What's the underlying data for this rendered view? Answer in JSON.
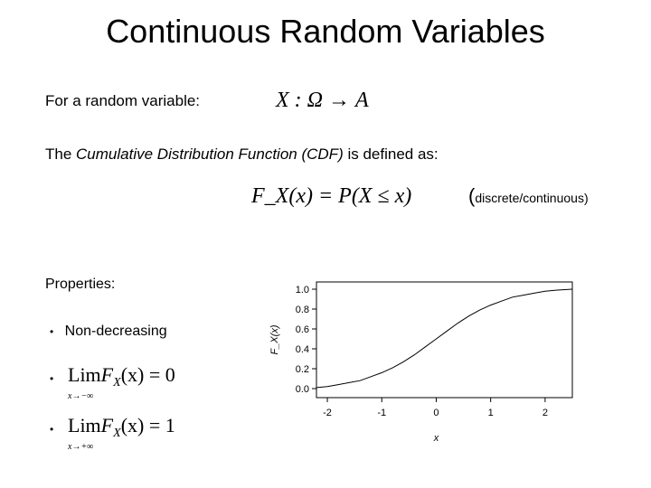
{
  "title": "Continuous Random Variables",
  "random_variable": {
    "label": "For a random variable:",
    "formula": "X : Ω → A"
  },
  "cdf": {
    "text_prefix": "The ",
    "text_italic": "Cumulative Distribution Function (CDF)",
    "text_suffix": " is defined as:",
    "formula": "F_X(x) = P(X ≤ x)",
    "note_paren": "(",
    "note_text": "discrete/continuous)"
  },
  "properties": {
    "heading": "Properties:",
    "bullet_char": "•",
    "non_decreasing": "Non-decreasing",
    "lim1": {
      "lim": "Lim",
      "F": "F",
      "X": "X",
      "rest": "(x) = 0",
      "sub": "x→−∞"
    },
    "lim2": {
      "lim": "Lim",
      "F": "F",
      "X": "X",
      "rest": "(x) = 1",
      "sub": "x→+∞"
    }
  },
  "chart_data": {
    "type": "line",
    "title": "",
    "xlabel": "x",
    "ylabel": "F_X(x)",
    "xlim": [
      -2.2,
      2.5
    ],
    "ylim": [
      0,
      1.0
    ],
    "xticks": [
      "-2",
      "-1",
      "0",
      "1",
      "2"
    ],
    "yticks": [
      "0.0",
      "0.2",
      "0.4",
      "0.6",
      "0.8",
      "1.0"
    ],
    "series": [
      {
        "x": [
          -2.2,
          -2.0,
          -1.8,
          -1.6,
          -1.4,
          -1.2,
          -1.0,
          -0.8,
          -0.6,
          -0.4,
          -0.2,
          0.0,
          0.2,
          0.4,
          0.6,
          0.8,
          1.0,
          1.2,
          1.4,
          1.6,
          1.8,
          2.0,
          2.2,
          2.5
        ],
        "y": [
          0.01,
          0.02,
          0.04,
          0.06,
          0.08,
          0.12,
          0.16,
          0.21,
          0.27,
          0.34,
          0.42,
          0.5,
          0.58,
          0.66,
          0.73,
          0.79,
          0.84,
          0.88,
          0.92,
          0.94,
          0.96,
          0.98,
          0.99,
          1.0
        ]
      }
    ]
  }
}
